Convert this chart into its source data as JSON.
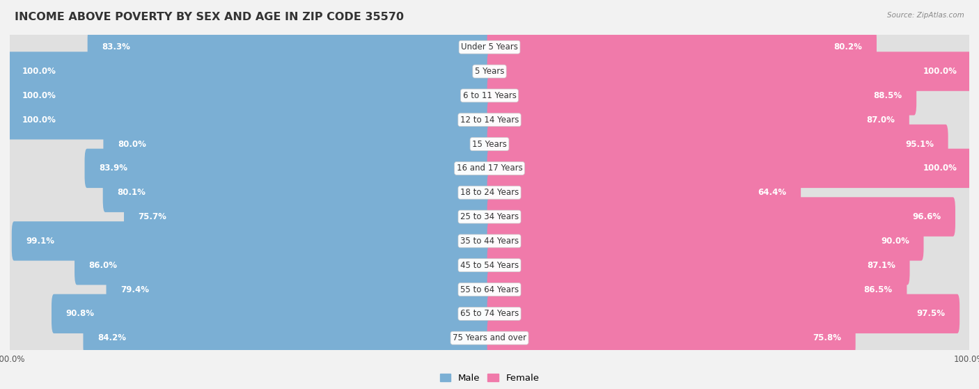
{
  "title": "INCOME ABOVE POVERTY BY SEX AND AGE IN ZIP CODE 35570",
  "source": "Source: ZipAtlas.com",
  "categories": [
    "Under 5 Years",
    "5 Years",
    "6 to 11 Years",
    "12 to 14 Years",
    "15 Years",
    "16 and 17 Years",
    "18 to 24 Years",
    "25 to 34 Years",
    "35 to 44 Years",
    "45 to 54 Years",
    "55 to 64 Years",
    "65 to 74 Years",
    "75 Years and over"
  ],
  "male_values": [
    83.3,
    100.0,
    100.0,
    100.0,
    80.0,
    83.9,
    80.1,
    75.7,
    99.1,
    86.0,
    79.4,
    90.8,
    84.2
  ],
  "female_values": [
    80.2,
    100.0,
    88.5,
    87.0,
    95.1,
    100.0,
    64.4,
    96.6,
    90.0,
    87.1,
    86.5,
    97.5,
    75.8
  ],
  "male_color": "#7bafd4",
  "female_color": "#f07aaa",
  "male_label": "Male",
  "female_label": "Female",
  "row_bg_odd": "#f0f0f0",
  "row_bg_even": "#fafafa",
  "bar_track_color": "#e8e8e8",
  "title_fontsize": 11.5,
  "value_fontsize": 8.5,
  "cat_fontsize": 8.5,
  "axis_fontsize": 8.5,
  "legend_fontsize": 9.5
}
